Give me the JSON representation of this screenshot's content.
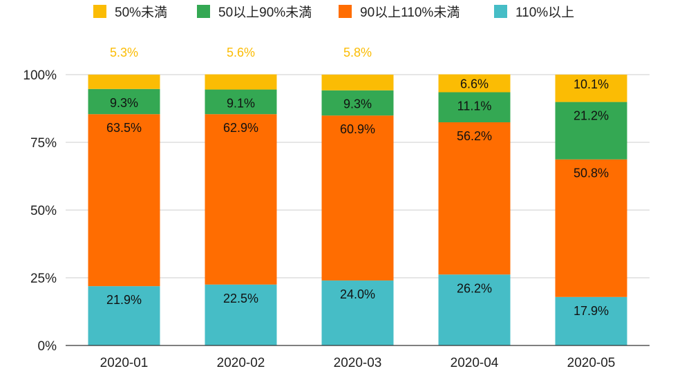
{
  "chart_data": {
    "type": "bar",
    "stacked": true,
    "percent_stacked": true,
    "title": "",
    "xlabel": "",
    "ylabel": "",
    "ylim": [
      0,
      100
    ],
    "y_ticks": [
      "0%",
      "25%",
      "50%",
      "75%",
      "100%"
    ],
    "y_tick_values": [
      0,
      25,
      50,
      75,
      100
    ],
    "grid": true,
    "legend_position": "top",
    "categories": [
      "2020-01",
      "2020-02",
      "2020-03",
      "2020-04",
      "2020-05"
    ],
    "series": [
      {
        "name": "110%以上",
        "color": "#46bdc6",
        "values": [
          21.9,
          22.5,
          24.0,
          26.2,
          17.9
        ],
        "labels": [
          "21.9%",
          "22.5%",
          "24.0%",
          "26.2%",
          "17.9%"
        ]
      },
      {
        "name": "90以上110%未満",
        "color": "#ff6d01",
        "values": [
          63.5,
          62.9,
          60.9,
          56.2,
          50.8
        ],
        "labels": [
          "63.5%",
          "62.9%",
          "60.9%",
          "56.2%",
          "50.8%"
        ]
      },
      {
        "name": "50以上90%未満",
        "color": "#34a853",
        "values": [
          9.3,
          9.1,
          9.3,
          11.1,
          21.2
        ],
        "labels": [
          "9.3%",
          "9.1%",
          "9.3%",
          "11.1%",
          "21.2%"
        ]
      },
      {
        "name": "50%未満",
        "color": "#fbbc04",
        "values": [
          5.3,
          5.6,
          5.8,
          6.6,
          10.1
        ],
        "labels": [
          "5.3%",
          "5.6%",
          "5.8%",
          "6.6%",
          "10.1%"
        ]
      }
    ],
    "legend_order": [
      "50%未満",
      "50以上90%未満",
      "90以上110%未満",
      "110%以上"
    ]
  }
}
